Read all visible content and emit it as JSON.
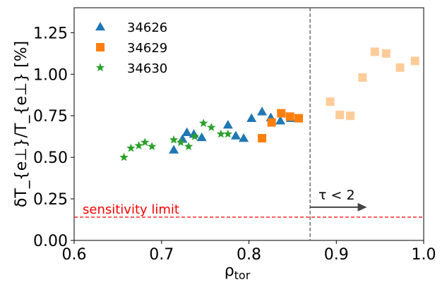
{
  "chart_data": {
    "type": "scatter",
    "xlabel_main": "ρ",
    "xlabel_sub": "tor",
    "ylabel": "δT_{e⊥}/T_{e⊥}  [%]",
    "xlim": [
      0.6,
      1.0
    ],
    "ylim": [
      0.0,
      1.4
    ],
    "xticks": [
      "0.6",
      "0.7",
      "0.8",
      "0.9",
      "1.0"
    ],
    "xtick_values": [
      0.6,
      0.7,
      0.8,
      0.9,
      1.0
    ],
    "yticks": [
      "0.00",
      "0.25",
      "0.50",
      "0.75",
      "1.00",
      "1.25"
    ],
    "ytick_values": [
      0.0,
      0.25,
      0.5,
      0.75,
      1.0,
      1.25
    ],
    "grid": false,
    "legend_position": "top-left",
    "series": [
      {
        "name": "34626",
        "marker": "triangle",
        "color": "#1f77b4",
        "points": [
          [
            0.714,
            0.545
          ],
          [
            0.724,
            0.61
          ],
          [
            0.729,
            0.65
          ],
          [
            0.737,
            0.64
          ],
          [
            0.746,
            0.62
          ],
          [
            0.776,
            0.695
          ],
          [
            0.785,
            0.63
          ],
          [
            0.794,
            0.615
          ],
          [
            0.803,
            0.735
          ],
          [
            0.815,
            0.775
          ],
          [
            0.825,
            0.74
          ],
          [
            0.836,
            0.72
          ],
          [
            0.848,
            0.735
          ]
        ]
      },
      {
        "name": "34629",
        "marker": "square",
        "color": "#ff7f0e",
        "points": [
          [
            0.815,
            0.615
          ],
          [
            0.826,
            0.71
          ],
          [
            0.837,
            0.765
          ],
          [
            0.847,
            0.745
          ],
          [
            0.857,
            0.735
          ]
        ]
      },
      {
        "name": "34630",
        "marker": "star",
        "color": "#2ca02c",
        "points": [
          [
            0.657,
            0.5
          ],
          [
            0.665,
            0.555
          ],
          [
            0.674,
            0.57
          ],
          [
            0.681,
            0.59
          ],
          [
            0.689,
            0.565
          ],
          [
            0.714,
            0.605
          ],
          [
            0.722,
            0.59
          ],
          [
            0.731,
            0.565
          ],
          [
            0.738,
            0.625
          ],
          [
            0.748,
            0.705
          ],
          [
            0.757,
            0.68
          ],
          [
            0.768,
            0.64
          ],
          [
            0.776,
            0.64
          ]
        ]
      },
      {
        "name": "",
        "marker": "square",
        "color": "#ffcc99",
        "legend": false,
        "points": [
          [
            0.893,
            0.835
          ],
          [
            0.904,
            0.755
          ],
          [
            0.916,
            0.75
          ],
          [
            0.93,
            0.98
          ],
          [
            0.944,
            1.135
          ],
          [
            0.957,
            1.125
          ],
          [
            0.973,
            1.04
          ],
          [
            0.99,
            1.08
          ]
        ]
      }
    ],
    "vline": {
      "x": 0.87,
      "style": "dashed",
      "color": "#555555"
    },
    "hline": {
      "y": 0.14,
      "style": "dashed",
      "color": "#ff0000",
      "label": "sensitivity limit"
    },
    "arrow": {
      "x_from": 0.87,
      "x_to": 0.935,
      "y": 0.2,
      "label": "τ < 2",
      "color": "#444444"
    }
  }
}
